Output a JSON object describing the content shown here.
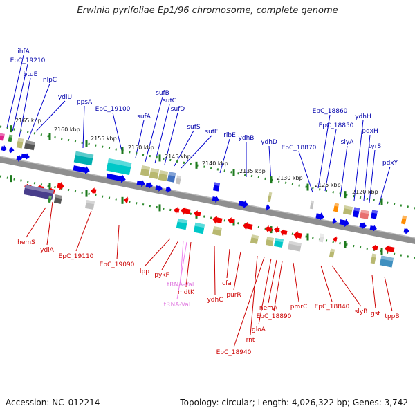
{
  "title": "Erwinia pyrifoliae Ep1/96 chromosome, complete genome",
  "accession": "Accession: NC_012214",
  "summary": "Topology: circular; Length: 4,026,322 bp; Genes: 3,742",
  "colors": {
    "top_strand": "#00008b",
    "bottom_strand": "#cc0000",
    "trna": "#ee82ee",
    "backbone": "#8a8a8a",
    "tick": "#2e8b2e"
  },
  "kbp_ticks": [
    "2165 kbp",
    "2160 kbp",
    "2155 kbp",
    "2150 kbp",
    "2145 kbp",
    "2140 kbp",
    "2135 kbp",
    "2130 kbp",
    "2125 kbp",
    "2120 kbp"
  ],
  "top_genes": [
    "ihfA",
    "EpC_19210",
    "btuE",
    "nlpC",
    "ydiU",
    "ppsA",
    "EpC_19100",
    "sufA",
    "sufB",
    "sufC",
    "sufD",
    "sufS",
    "sufE",
    "ribE",
    "ydhB",
    "ydhD",
    "EpC_18870",
    "EpC_18860",
    "EpC_18850",
    "slyA",
    "ydhH",
    "pdxH",
    "tyrS",
    "pdxY"
  ],
  "bottom_genes": [
    "hemS",
    "ydiA",
    "EpC_19110",
    "EpC_19090",
    "lpp",
    "pykF",
    "tRNA-Val",
    "mdtK",
    "tRNA-Val",
    "ydhC",
    "cfa",
    "purR",
    "rnt",
    "EpC_18940",
    "gloA",
    "nemA",
    "EpC_18890",
    "pmrC",
    "EpC_18840",
    "slyB",
    "gst",
    "tppB"
  ]
}
